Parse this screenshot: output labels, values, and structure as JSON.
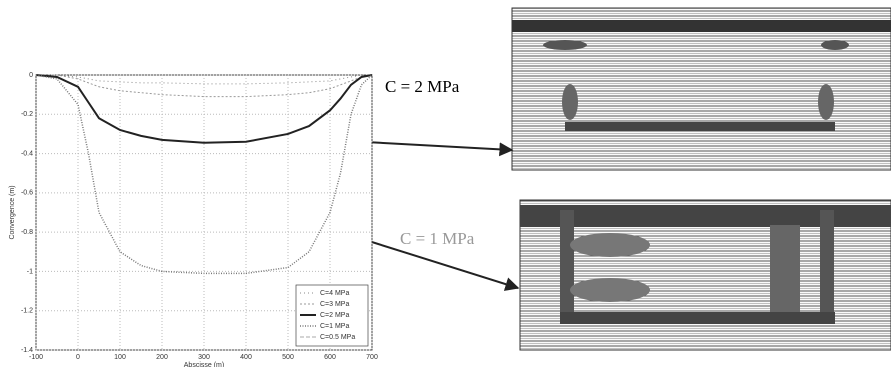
{
  "chart_data": {
    "type": "line",
    "x_label": "Abscisse (m)",
    "y_label": "Convergence (m)",
    "x": [
      -100,
      -50,
      0,
      25,
      50,
      100,
      150,
      200,
      300,
      400,
      500,
      550,
      600,
      625,
      650,
      675,
      700
    ],
    "series": [
      {
        "name": "C=4 MPa",
        "color": "#888888",
        "values": [
          0,
          0,
          -0.01,
          -0.02,
          -0.03,
          -0.035,
          -0.04,
          -0.04,
          -0.045,
          -0.045,
          -0.04,
          -0.035,
          -0.03,
          -0.02,
          -0.01,
          0,
          0
        ]
      },
      {
        "name": "C=3 MPa",
        "color": "#999999",
        "values": [
          0,
          0,
          -0.02,
          -0.04,
          -0.06,
          -0.08,
          -0.09,
          -0.1,
          -0.11,
          -0.11,
          -0.1,
          -0.09,
          -0.07,
          -0.05,
          -0.03,
          -0.01,
          0
        ]
      },
      {
        "name": "C=2 MPa",
        "color": "#222222",
        "values": [
          0,
          -0.01,
          -0.06,
          -0.14,
          -0.22,
          -0.28,
          -0.31,
          -0.33,
          -0.345,
          -0.34,
          -0.3,
          -0.26,
          -0.18,
          -0.12,
          -0.05,
          -0.01,
          0
        ]
      },
      {
        "name": "C=1 MPa",
        "color": "#777777",
        "values": [
          0,
          -0.02,
          -0.15,
          -0.4,
          -0.7,
          -0.9,
          -0.97,
          -1.0,
          -1.01,
          -1.01,
          -0.98,
          -0.9,
          -0.7,
          -0.5,
          -0.2,
          -0.05,
          0
        ]
      },
      {
        "name": "C=0.5 MPa",
        "color": "#aaaaaa",
        "values": [
          null,
          null,
          null,
          null,
          null,
          null,
          null,
          null,
          null,
          null,
          null,
          null,
          null,
          null,
          null,
          null,
          null
        ]
      }
    ],
    "xlim": [
      -100,
      700
    ],
    "xticks": [
      -100,
      0,
      100,
      200,
      300,
      400,
      500,
      600,
      700
    ],
    "ylim": [
      -1.4,
      0
    ],
    "yticks": [
      0,
      -0.2,
      -0.4,
      -0.6,
      -0.8,
      -1,
      -1.2,
      -1.4
    ],
    "grid": true,
    "legend": "lower right",
    "annotations": [
      "C = 2 MPa",
      "C = 1 MPa"
    ]
  }
}
